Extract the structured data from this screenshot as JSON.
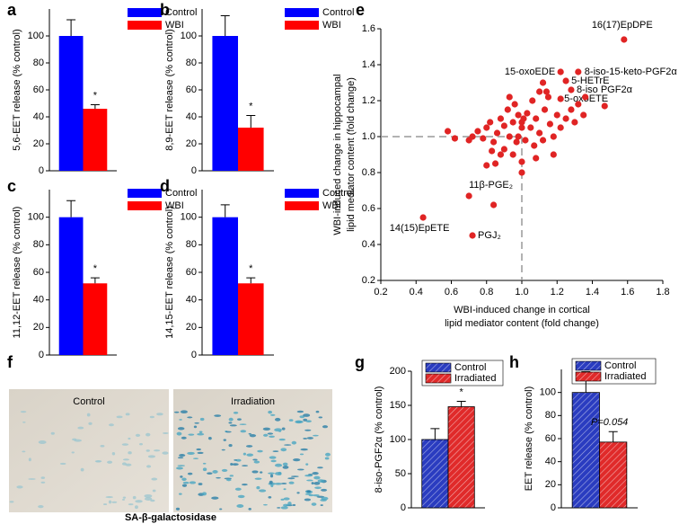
{
  "chart_data": [
    {
      "type": "bar",
      "panel_label": "a",
      "ylabel": "5,6-EET release (% control)",
      "ylim": [
        0,
        120
      ],
      "yticks": [
        0,
        20,
        40,
        60,
        80,
        100
      ],
      "series": [
        {
          "name": "Control",
          "color": "#0000ff",
          "values": [
            100
          ],
          "errors": [
            12
          ]
        },
        {
          "name": "WBI",
          "color": "#ff0000",
          "values": [
            46
          ],
          "errors": [
            3
          ]
        }
      ],
      "annotation": "*"
    },
    {
      "type": "bar",
      "panel_label": "b",
      "ylabel": "8,9-EET release (% control)",
      "ylim": [
        0,
        120
      ],
      "yticks": [
        0,
        20,
        40,
        60,
        80,
        100
      ],
      "series": [
        {
          "name": "Control",
          "color": "#0000ff",
          "values": [
            100
          ],
          "errors": [
            15
          ]
        },
        {
          "name": "WBI",
          "color": "#ff0000",
          "values": [
            32
          ],
          "errors": [
            9
          ]
        }
      ],
      "annotation": "*"
    },
    {
      "type": "bar",
      "panel_label": "c",
      "ylabel": "11,12-EET release (% control)",
      "ylim": [
        0,
        120
      ],
      "yticks": [
        0,
        20,
        40,
        60,
        80,
        100
      ],
      "series": [
        {
          "name": "Control",
          "color": "#0000ff",
          "values": [
            100
          ],
          "errors": [
            12
          ]
        },
        {
          "name": "WBI",
          "color": "#ff0000",
          "values": [
            52
          ],
          "errors": [
            4
          ]
        }
      ],
      "annotation": "*"
    },
    {
      "type": "bar",
      "panel_label": "d",
      "ylabel": "14,15-EET release (% control)",
      "ylim": [
        0,
        120
      ],
      "yticks": [
        0,
        20,
        40,
        60,
        80,
        100
      ],
      "series": [
        {
          "name": "Control",
          "color": "#0000ff",
          "values": [
            100
          ],
          "errors": [
            9
          ]
        },
        {
          "name": "WBI",
          "color": "#ff0000",
          "values": [
            52
          ],
          "errors": [
            4
          ]
        }
      ],
      "annotation": "*"
    },
    {
      "type": "scatter",
      "panel_label": "e",
      "xlabel": [
        "WBI-induced change in cortical",
        "lipid mediator content (fold change)"
      ],
      "ylabel": [
        "WBI-induced change in hippocampal",
        "lipid mediator content (fold change)"
      ],
      "xlim": [
        0.2,
        1.8
      ],
      "xticks": [
        0.2,
        0.4,
        0.6,
        0.8,
        {
          "value": 1,
          "label": "1.0"
        },
        1.2,
        1.4,
        1.6,
        1.8
      ],
      "ylim": [
        0.2,
        1.6
      ],
      "yticks": [
        0.2,
        0.4,
        0.6,
        0.8,
        {
          "value": 1,
          "label": "1.0"
        },
        1.2,
        1.4,
        1.6
      ],
      "crosshair": {
        "x": 1,
        "y": 1
      },
      "series": [
        {
          "color": "#e02424",
          "x": [
            1.58,
            1.22,
            1.32,
            1.25,
            1.28,
            1.22,
            0.7,
            0.44,
            0.72,
            1.47,
            0.84,
            0.58,
            0.62,
            0.7,
            0.72,
            0.75,
            0.78,
            0.8,
            0.82,
            0.84,
            0.86,
            0.88,
            0.9,
            0.9,
            0.92,
            0.93,
            0.95,
            0.96,
            0.97,
            0.98,
            1.0,
            1.0,
            1.01,
            1.02,
            1.03,
            1.05,
            1.06,
            1.07,
            1.08,
            1.1,
            1.1,
            1.12,
            1.13,
            1.15,
            1.16,
            1.18,
            1.2,
            1.22,
            1.25,
            1.28,
            1.3,
            1.32,
            1.35,
            1.36,
            1.18,
            0.8,
            0.85,
            0.88,
            1.0,
            1.0,
            1.08,
            0.98,
            0.95,
            1.12,
            1.14,
            0.93,
            0.83
          ],
          "y": [
            1.54,
            1.36,
            1.36,
            1.31,
            1.26,
            1.21,
            0.67,
            0.55,
            0.45,
            1.17,
            0.62,
            1.03,
            0.99,
            0.98,
            1.0,
            1.03,
            0.99,
            1.05,
            1.08,
            0.97,
            1.02,
            1.1,
            1.06,
            0.93,
            1.15,
            1.0,
            1.08,
            1.18,
            0.97,
            1.12,
            1.08,
            1.05,
            1.1,
            0.98,
            1.13,
            1.05,
            1.2,
            0.95,
            1.1,
            1.25,
            1.02,
            0.98,
            1.15,
            1.22,
            1.07,
            1.0,
            1.12,
            1.05,
            1.1,
            1.15,
            1.08,
            1.18,
            1.12,
            1.22,
            0.9,
            0.84,
            0.85,
            0.9,
            0.86,
            0.8,
            0.88,
            1.0,
            0.9,
            1.3,
            1.25,
            1.22,
            0.92
          ],
          "point_labels": [
            "16(17)EpDPE",
            "15-oxoEDE",
            "8-iso-15-keto-PGF2α",
            "5-HETrE",
            "8-iso PGF2α",
            "5-oxoETE",
            "11β-PGE₂",
            "14(15)EpETE",
            "PGJ₂",
            null,
            null,
            null,
            null,
            null,
            null,
            null,
            null,
            null,
            null,
            null,
            null,
            null,
            null,
            null,
            null,
            null,
            null,
            null,
            null,
            null,
            null,
            null,
            null,
            null,
            null,
            null,
            null,
            null,
            null,
            null,
            null,
            null,
            null,
            null,
            null,
            null,
            null,
            null,
            null,
            null,
            null,
            null,
            null,
            null,
            null,
            null,
            null,
            null,
            null,
            null,
            null,
            null,
            null,
            null,
            null,
            null,
            null
          ]
        }
      ]
    },
    {
      "type": "bar",
      "panel_label": "g",
      "ylabel": "8-iso-PGF2α (% control)",
      "ylim": [
        0,
        200
      ],
      "yticks": [
        0,
        50,
        100,
        150,
        200
      ],
      "hatch": true,
      "series": [
        {
          "name": "Control",
          "color": "#2a3cc0",
          "values": [
            100
          ],
          "errors": [
            16
          ]
        },
        {
          "name": "Irradiated",
          "color": "#e02a2a",
          "values": [
            148
          ],
          "errors": [
            8
          ]
        }
      ],
      "annotation": "*"
    },
    {
      "type": "bar",
      "panel_label": "h",
      "ylabel": "EET release (% control)",
      "ylim": [
        0,
        120
      ],
      "yticks": [
        0,
        20,
        40,
        60,
        80,
        100
      ],
      "hatch": true,
      "series": [
        {
          "name": "Control",
          "color": "#2a3cc0",
          "values": [
            100
          ],
          "errors": [
            18
          ]
        },
        {
          "name": "Irradiated",
          "color": "#e02a2a",
          "values": [
            57
          ],
          "errors": [
            9
          ]
        }
      ],
      "annotation": "P=0.054"
    }
  ],
  "image_panel": {
    "panel_label": "f",
    "images": [
      "Control",
      "Irradiation"
    ],
    "caption": "SA-β-galactosidase"
  }
}
